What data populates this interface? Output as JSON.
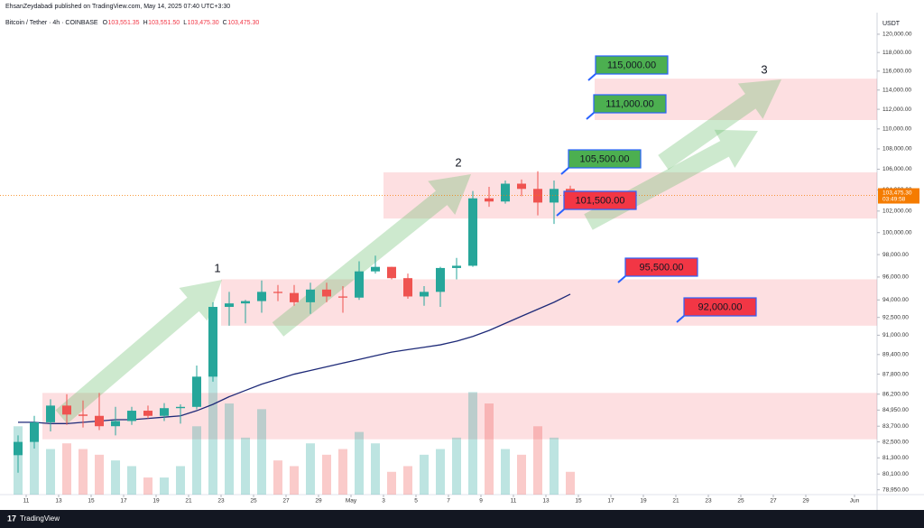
{
  "header": {
    "publisher": "EhsanZeydabadi published on TradingView.com, May 14, 2025 07:40 UTC+3:30",
    "symbol": "Bitcoin / Tether · 4h · COINBASE",
    "ohlc": [
      {
        "key": "O",
        "value": "103,551.35"
      },
      {
        "key": "H",
        "value": "103,551.50"
      },
      {
        "key": "L",
        "value": "103,475.30"
      },
      {
        "key": "C",
        "value": "103,475.30"
      }
    ],
    "currency": "USDT"
  },
  "footer": {
    "brand": "TradingView"
  },
  "chart_data": {
    "type": "candlestick",
    "log_scale": true,
    "grid": false,
    "up_color": "#26a69a",
    "down_color": "#ef5350",
    "x": [
      "2025-04-10",
      "2025-04-11",
      "2025-04-12",
      "2025-04-13",
      "2025-04-14",
      "2025-04-15",
      "2025-04-16",
      "2025-04-17",
      "2025-04-18",
      "2025-04-19",
      "2025-04-20",
      "2025-04-21",
      "2025-04-22",
      "2025-04-23",
      "2025-04-24",
      "2025-04-25",
      "2025-04-26",
      "2025-04-27",
      "2025-04-28",
      "2025-04-29",
      "2025-04-30",
      "2025-05-01",
      "2025-05-02",
      "2025-05-03",
      "2025-05-04",
      "2025-05-05",
      "2025-05-06",
      "2025-05-07",
      "2025-05-08",
      "2025-05-09",
      "2025-05-10",
      "2025-05-11",
      "2025-05-12",
      "2025-05-13",
      "2025-05-14"
    ],
    "open": [
      81500,
      82500,
      84000,
      85300,
      84600,
      84500,
      83700,
      84100,
      84900,
      84500,
      85100,
      85200,
      87600,
      93400,
      93700,
      93900,
      94700,
      94600,
      93800,
      94900,
      94300,
      94200,
      96500,
      96900,
      95900,
      94300,
      94700,
      96800,
      97000,
      103200,
      102900,
      104600,
      104100,
      102800,
      104100
    ],
    "high": [
      83000,
      84500,
      85800,
      86200,
      85700,
      86300,
      85200,
      85200,
      85300,
      85500,
      85400,
      88500,
      93800,
      94700,
      94000,
      95700,
      95300,
      95300,
      95500,
      95500,
      95200,
      97400,
      97900,
      96900,
      96300,
      95200,
      96900,
      97700,
      103900,
      104300,
      104900,
      105000,
      105800,
      104900,
      104400
    ],
    "low": [
      80200,
      82000,
      83300,
      83800,
      83600,
      83400,
      83000,
      83800,
      84300,
      84100,
      83900,
      85000,
      87200,
      91800,
      92000,
      92900,
      93900,
      93500,
      92800,
      93800,
      92900,
      94000,
      96300,
      95800,
      94100,
      93500,
      93400,
      95800,
      96900,
      102400,
      102700,
      103400,
      101600,
      100800,
      103300
    ],
    "close": [
      82500,
      84000,
      85300,
      84600,
      84500,
      83700,
      84100,
      84900,
      84500,
      85100,
      85200,
      87600,
      93400,
      93700,
      93900,
      94700,
      94600,
      93800,
      94900,
      94300,
      94200,
      96500,
      96900,
      95900,
      94300,
      94700,
      96800,
      97000,
      103200,
      102900,
      104600,
      104100,
      102800,
      104100,
      103475.3
    ],
    "volume": {
      "values": [
        60,
        50,
        40,
        45,
        40,
        35,
        30,
        25,
        15,
        15,
        25,
        60,
        110,
        80,
        50,
        75,
        30,
        25,
        45,
        35,
        40,
        55,
        45,
        20,
        25,
        35,
        40,
        50,
        90,
        80,
        40,
        35,
        60,
        50,
        20
      ],
      "ylim": [
        0,
        420
      ]
    },
    "ma": {
      "color": "#1e2a78",
      "values": [
        84000,
        84000,
        83900,
        83900,
        84000,
        84100,
        84200,
        84200,
        84300,
        84400,
        84500,
        84900,
        85400,
        86000,
        86500,
        87000,
        87400,
        87800,
        88100,
        88400,
        88700,
        89000,
        89300,
        89600,
        89800,
        90000,
        90200,
        90500,
        90900,
        91400,
        92000,
        92600,
        93200,
        93800,
        94500
      ]
    },
    "last": {
      "value": 103475.3,
      "label": "103,475.30",
      "countdown": "03:49:58",
      "color": "#f57c00"
    },
    "xlim": [
      "2025-04-09",
      "2025-06-02"
    ],
    "xticks": [
      {
        "value": "2025-04-11",
        "label": "11"
      },
      {
        "value": "2025-04-13",
        "label": "13"
      },
      {
        "value": "2025-04-15",
        "label": "15"
      },
      {
        "value": "2025-04-17",
        "label": "17"
      },
      {
        "value": "2025-04-19",
        "label": "19"
      },
      {
        "value": "2025-04-21",
        "label": "21"
      },
      {
        "value": "2025-04-23",
        "label": "23"
      },
      {
        "value": "2025-04-25",
        "label": "25"
      },
      {
        "value": "2025-04-27",
        "label": "27"
      },
      {
        "value": "2025-04-29",
        "label": "29"
      },
      {
        "value": "2025-05-01",
        "label": "May"
      },
      {
        "value": "2025-05-03",
        "label": "3"
      },
      {
        "value": "2025-05-05",
        "label": "5"
      },
      {
        "value": "2025-05-07",
        "label": "7"
      },
      {
        "value": "2025-05-09",
        "label": "9"
      },
      {
        "value": "2025-05-11",
        "label": "11"
      },
      {
        "value": "2025-05-13",
        "label": "13"
      },
      {
        "value": "2025-05-15",
        "label": "15"
      },
      {
        "value": "2025-05-17",
        "label": "17"
      },
      {
        "value": "2025-05-19",
        "label": "19"
      },
      {
        "value": "2025-05-21",
        "label": "21"
      },
      {
        "value": "2025-05-23",
        "label": "23"
      },
      {
        "value": "2025-05-25",
        "label": "25"
      },
      {
        "value": "2025-05-27",
        "label": "27"
      },
      {
        "value": "2025-05-29",
        "label": "29"
      },
      {
        "value": "2025-06-01",
        "label": "Jun"
      }
    ],
    "ylim": [
      78600,
      122000
    ],
    "yticks": [
      {
        "value": 120000,
        "label": "120,000.00"
      },
      {
        "value": 118000,
        "label": "118,000.00"
      },
      {
        "value": 116000,
        "label": "116,000.00"
      },
      {
        "value": 114000,
        "label": "114,000.00"
      },
      {
        "value": 112000,
        "label": "112,000.00"
      },
      {
        "value": 110000,
        "label": "110,000.00"
      },
      {
        "value": 108000,
        "label": "108,000.00"
      },
      {
        "value": 106000,
        "label": "106,000.00"
      },
      {
        "value": 104000,
        "label": "104,000.00"
      },
      {
        "value": 102000,
        "label": "102,000.00"
      },
      {
        "value": 100000,
        "label": "100,000.00"
      },
      {
        "value": 98000,
        "label": "98,000.00"
      },
      {
        "value": 96000,
        "label": "96,000.00"
      },
      {
        "value": 94000,
        "label": "94,000.00"
      },
      {
        "value": 92500,
        "label": "92,500.00"
      },
      {
        "value": 91000,
        "label": "91,000.00"
      },
      {
        "value": 89400,
        "label": "89,400.00"
      },
      {
        "value": 87800,
        "label": "87,800.00"
      },
      {
        "value": 86200,
        "label": "86,200.00"
      },
      {
        "value": 84950,
        "label": "84,950.00"
      },
      {
        "value": 83700,
        "label": "83,700.00"
      },
      {
        "value": 82500,
        "label": "82,500.00"
      },
      {
        "value": 81300,
        "label": "81,300.00"
      },
      {
        "value": 80100,
        "label": "80,100.00"
      },
      {
        "value": 78950,
        "label": "78,950.00"
      }
    ],
    "zones": [
      {
        "from": "2025-04-12",
        "top": 86300,
        "bottom": 82700,
        "color": "rgba(242,54,69,0.16)"
      },
      {
        "from": "2025-04-23",
        "top": 95800,
        "bottom": 91800,
        "color": "rgba(242,54,69,0.16)"
      },
      {
        "from": "2025-05-03",
        "top": 105700,
        "bottom": 101300,
        "color": "rgba(242,54,69,0.16)"
      },
      {
        "from": "2025-05-16",
        "top": 115200,
        "bottom": 110900,
        "color": "rgba(242,54,69,0.16)"
      }
    ],
    "annotations": {
      "labels": [
        {
          "text": "115,000.00",
          "color": "#4caf50"
        },
        {
          "text": "111,000.00",
          "color": "#4caf50"
        },
        {
          "text": "105,500.00",
          "color": "#4caf50"
        },
        {
          "text": "101,500.00",
          "color": "#f23645"
        },
        {
          "text": "95,500.00",
          "color": "#f23645"
        },
        {
          "text": "92,000.00",
          "color": "#f23645"
        }
      ],
      "waves": [
        "1",
        "2",
        "3"
      ]
    }
  }
}
